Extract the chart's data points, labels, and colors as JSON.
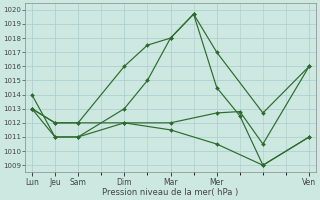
{
  "title": "",
  "xlabel": "Pression niveau de la mer( hPa )",
  "background_color": "#cce8e0",
  "grid_color": "#aacccc",
  "line_color": "#2d6b2d",
  "x_labels": [
    "Lun",
    "Jeu",
    "Sam",
    "Dim",
    "Mar",
    "Mer",
    "Ven"
  ],
  "x_positions": [
    0,
    1,
    2,
    4,
    6,
    8,
    12
  ],
  "ylim": [
    1008.5,
    1020.5
  ],
  "yticks": [
    1009,
    1010,
    1011,
    1012,
    1013,
    1014,
    1015,
    1016,
    1017,
    1018,
    1019,
    1020
  ],
  "xlim": [
    -0.3,
    12.3
  ],
  "lines": [
    {
      "x": [
        0,
        1,
        2,
        4,
        5,
        6,
        7,
        8,
        10,
        12
      ],
      "y": [
        1013,
        1012,
        1012,
        1016,
        1017.5,
        1018,
        1019.7,
        1017,
        1012.7,
        1016
      ]
    },
    {
      "x": [
        0,
        1,
        2,
        4,
        5,
        6,
        7,
        8,
        9,
        10,
        12
      ],
      "y": [
        1014,
        1011,
        1011,
        1013,
        1015,
        1018,
        1019.7,
        1014.5,
        1012.5,
        1009,
        1011
      ]
    },
    {
      "x": [
        0,
        1,
        2,
        4,
        6,
        8,
        9,
        10,
        12
      ],
      "y": [
        1013,
        1011,
        1011,
        1012,
        1012,
        1012.7,
        1012.8,
        1010.5,
        1016
      ]
    },
    {
      "x": [
        0,
        1,
        2,
        4,
        6,
        8,
        10,
        12
      ],
      "y": [
        1013,
        1012,
        1012,
        1012,
        1011.5,
        1010.5,
        1009,
        1011
      ]
    }
  ]
}
